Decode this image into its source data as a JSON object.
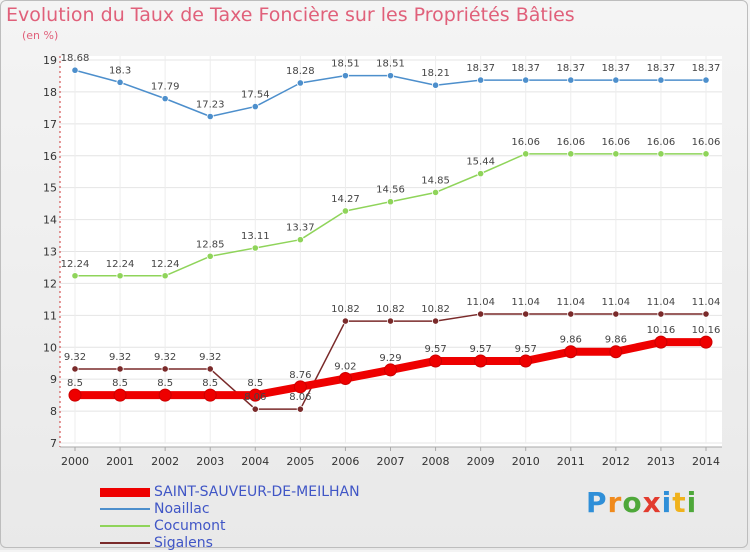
{
  "title": "Evolution du Taux de Taxe Foncière sur les Propriétés Bâties",
  "unit_label": "(en %)",
  "logo": {
    "text": "Proxiti"
  },
  "chart_data": {
    "type": "line",
    "title": "Evolution du Taux de Taxe Foncière sur les Propriétés Bâties",
    "ylabel": "(en %)",
    "xlabel": "",
    "x": [
      2000,
      2001,
      2002,
      2003,
      2004,
      2005,
      2006,
      2007,
      2008,
      2009,
      2010,
      2011,
      2012,
      2013,
      2014
    ],
    "ylim": [
      7,
      19
    ],
    "yticks": [
      7,
      8,
      9,
      10,
      11,
      12,
      13,
      14,
      15,
      16,
      17,
      18,
      19
    ],
    "legend_position": "bottom-left",
    "series": [
      {
        "name": "SAINT-SAUVEUR-DE-MEILHAN",
        "color": "#ee0000",
        "values": [
          8.5,
          8.5,
          8.5,
          8.5,
          8.5,
          8.76,
          9.02,
          9.29,
          9.57,
          9.57,
          9.57,
          9.86,
          9.86,
          10.16,
          10.16
        ],
        "labels": [
          "8.5",
          "8.5",
          "8.5",
          "8.5",
          "8.5",
          "8.76",
          "9.02",
          "9.29",
          "9.57",
          "9.57",
          "9.57",
          "9.86",
          "9.86",
          "10.16",
          "10.16"
        ]
      },
      {
        "name": "Noaillac",
        "color": "#4d8fcc",
        "values": [
          18.68,
          18.3,
          17.79,
          17.23,
          17.54,
          18.28,
          18.51,
          18.51,
          18.21,
          18.37,
          18.37,
          18.37,
          18.37,
          18.37,
          18.37
        ],
        "labels": [
          "18.68",
          "18.3",
          "17.79",
          "17.23",
          "17.54",
          "18.28",
          "18.51",
          "18.51",
          "18.21",
          "18.37",
          "18.37",
          "18.37",
          "18.37",
          "18.37",
          "18.37"
        ]
      },
      {
        "name": "Cocumont",
        "color": "#8fd45a",
        "values": [
          12.24,
          12.24,
          12.24,
          12.85,
          13.11,
          13.37,
          14.27,
          14.56,
          14.85,
          15.44,
          16.06,
          16.06,
          16.06,
          16.06,
          16.06
        ],
        "labels": [
          "12.24",
          "12.24",
          "12.24",
          "12.85",
          "13.11",
          "13.37",
          "14.27",
          "14.56",
          "14.85",
          "15.44",
          "16.06",
          "16.06",
          "16.06",
          "16.06",
          "16.06"
        ]
      },
      {
        "name": "Sigalens",
        "color": "#7a2a2a",
        "values": [
          9.32,
          9.32,
          9.32,
          9.32,
          8.06,
          8.06,
          10.82,
          10.82,
          10.82,
          11.04,
          11.04,
          11.04,
          11.04,
          11.04,
          11.04
        ],
        "labels": [
          "9.32",
          "9.32",
          "9.32",
          "9.32",
          "8.06",
          "8.06",
          "10.82",
          "10.82",
          "10.82",
          "11.04",
          "11.04",
          "11.04",
          "11.04",
          "11.04",
          "11.04"
        ]
      }
    ]
  }
}
